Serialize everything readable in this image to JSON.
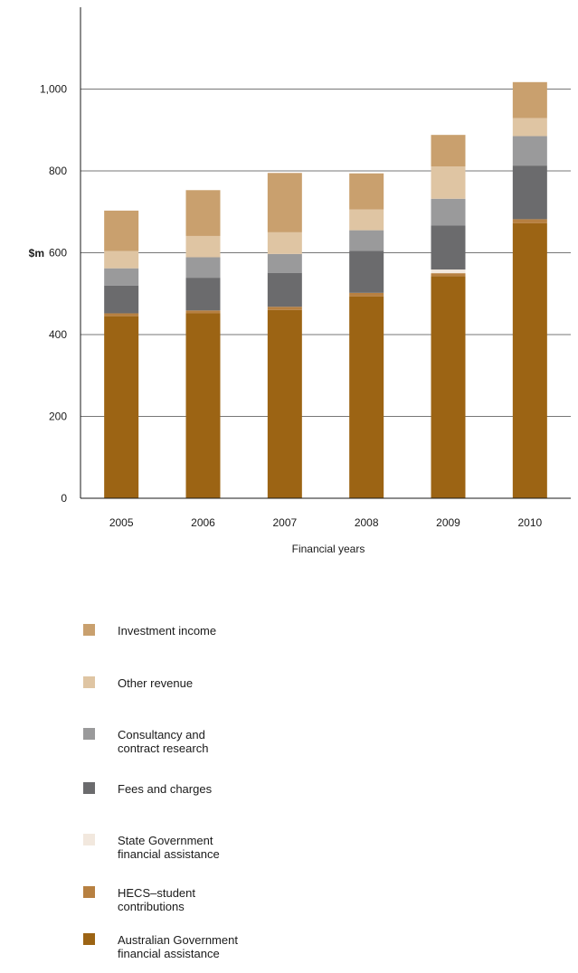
{
  "chart_data": {
    "type": "bar",
    "stacked": true,
    "ylabel": "$m",
    "xlabel": "Financial years",
    "ylim": [
      0,
      1200
    ],
    "yticks": [
      0,
      200,
      400,
      600,
      800,
      1000
    ],
    "ytick_labels": [
      "0",
      "200",
      "400",
      "600",
      "800",
      "1,000"
    ],
    "grid": true,
    "legend_position": "bottom",
    "categories": [
      "2005",
      "2006",
      "2007",
      "2008",
      "2009",
      "2010"
    ],
    "series": [
      {
        "name": "Australian Government\nfinancial assistance",
        "color": "#9c6414",
        "values": [
          445,
          452,
          460,
          493,
          543,
          672
        ]
      },
      {
        "name": "HECS–student\ncontributions",
        "color": "#b78041",
        "values": [
          7,
          7,
          8,
          9,
          7,
          10
        ]
      },
      {
        "name": "State Government\nfinancial assistance",
        "color": "#f2e8de",
        "values": [
          0,
          0,
          0,
          0,
          9,
          0
        ]
      },
      {
        "name": "Fees and charges",
        "color": "#6b6b6d",
        "values": [
          68,
          80,
          83,
          103,
          108,
          131
        ]
      },
      {
        "name": "Consultancy and\ncontract research",
        "color": "#9a9a9b",
        "values": [
          42,
          50,
          46,
          50,
          65,
          72
        ]
      },
      {
        "name": "Other revenue",
        "color": "#dfc5a3",
        "values": [
          42,
          52,
          53,
          51,
          79,
          44
        ]
      },
      {
        "name": "Investment income",
        "color": "#c9a06e",
        "values": [
          99,
          112,
          145,
          88,
          77,
          88
        ]
      }
    ]
  }
}
